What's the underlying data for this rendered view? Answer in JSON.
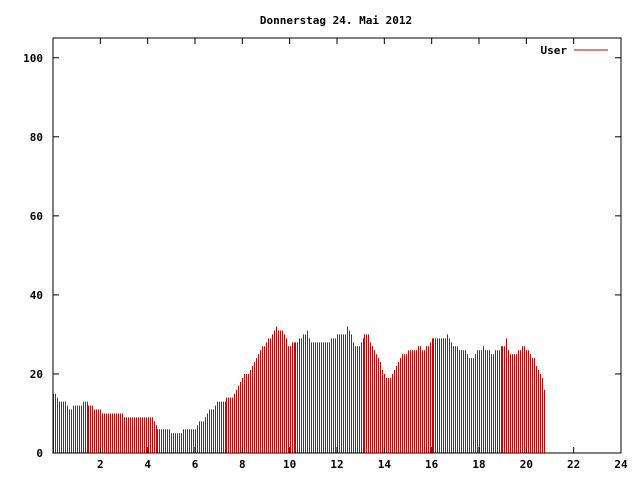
{
  "chart_data": {
    "type": "bar",
    "title": "Donnerstag 24. Mai 2012",
    "xlabel": "",
    "ylabel": "",
    "xlim": [
      0,
      24
    ],
    "ylim": [
      0,
      105
    ],
    "xticks": [
      2,
      4,
      6,
      8,
      10,
      12,
      14,
      16,
      18,
      20,
      22,
      24
    ],
    "xtick_labels": [
      "2",
      "4",
      "6",
      "8",
      "10",
      "12",
      "14",
      "16",
      "18",
      "20",
      "22",
      "24"
    ],
    "yticks": [
      0,
      20,
      40,
      60,
      80,
      100
    ],
    "ytick_labels": [
      "0",
      "20",
      "40",
      "60",
      "80",
      "100"
    ],
    "grid": false,
    "legend_position": "top-right",
    "colors": {
      "series": "#cc0000",
      "frame": "#000000",
      "background": "#ffffff"
    },
    "series": [
      {
        "name": "User",
        "x_step_hours": 0.0833,
        "values": [
          15,
          15,
          14,
          13,
          13,
          13,
          13,
          12,
          11,
          11,
          12,
          12,
          12,
          12,
          12,
          13,
          13,
          13,
          12,
          12,
          12,
          11,
          11,
          11,
          11,
          10,
          10,
          10,
          10,
          10,
          10,
          10,
          10,
          10,
          10,
          10,
          9,
          9,
          9,
          9,
          9,
          9,
          9,
          9,
          9,
          9,
          9,
          9,
          9,
          9,
          9,
          8,
          7,
          6,
          6,
          6,
          6,
          6,
          6,
          6,
          5,
          5,
          5,
          5,
          5,
          5,
          6,
          6,
          6,
          6,
          6,
          6,
          6,
          7,
          8,
          8,
          8,
          9,
          10,
          11,
          11,
          11,
          12,
          13,
          13,
          13,
          13,
          13,
          14,
          14,
          14,
          14,
          15,
          16,
          17,
          18,
          19,
          20,
          20,
          20,
          21,
          22,
          23,
          24,
          25,
          26,
          27,
          27,
          28,
          29,
          29,
          30,
          31,
          32,
          31,
          31,
          31,
          30,
          29,
          27,
          27,
          28,
          28,
          28,
          28,
          29,
          29,
          30,
          30,
          31,
          29,
          28,
          28,
          28,
          28,
          28,
          28,
          28,
          28,
          28,
          28,
          29,
          29,
          29,
          30,
          30,
          30,
          30,
          30,
          32,
          31,
          30,
          28,
          27,
          27,
          27,
          28,
          29,
          30,
          30,
          30,
          28,
          27,
          26,
          25,
          24,
          23,
          21,
          20,
          19,
          19,
          19,
          20,
          21,
          22,
          23,
          24,
          25,
          25,
          25,
          26,
          26,
          26,
          26,
          26,
          27,
          27,
          26,
          26,
          27,
          27,
          28,
          29,
          29,
          29,
          29,
          29,
          29,
          29,
          29,
          30,
          29,
          28,
          27,
          27,
          27,
          26,
          26,
          26,
          26,
          25,
          24,
          24,
          24,
          25,
          26,
          26,
          26,
          27,
          26,
          26,
          26,
          25,
          25,
          26,
          26,
          26,
          27,
          27,
          27,
          29,
          26,
          25,
          25,
          25,
          25,
          26,
          26,
          27,
          27,
          26,
          26,
          25,
          24,
          24,
          22,
          21,
          20,
          19,
          16
        ]
      }
    ]
  }
}
